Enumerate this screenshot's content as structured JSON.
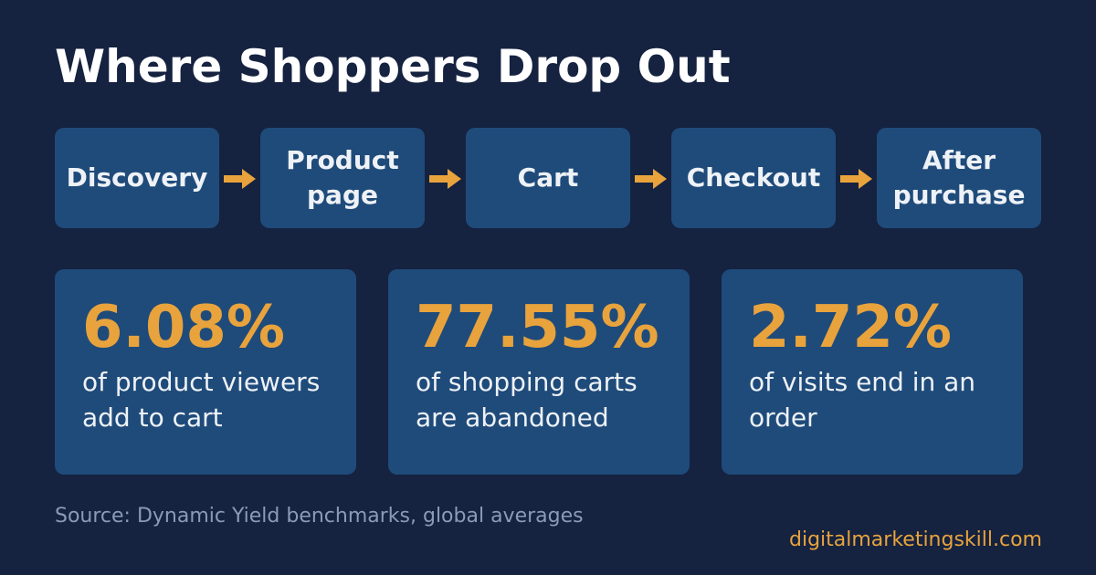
{
  "title": "Where Shoppers Drop Out",
  "steps": [
    "Discovery",
    "Product page",
    "Cart",
    "Checkout",
    "After purchase"
  ],
  "stats": [
    {
      "value": "6.08%",
      "text": "of product viewers add to cart"
    },
    {
      "value": "77.55%",
      "text": "of shopping carts are abandoned"
    },
    {
      "value": "2.72%",
      "text": "of visits end in an order"
    }
  ],
  "source": "Source: Dynamic Yield benchmarks, global averages",
  "site": "digitalmarketingskill.com"
}
